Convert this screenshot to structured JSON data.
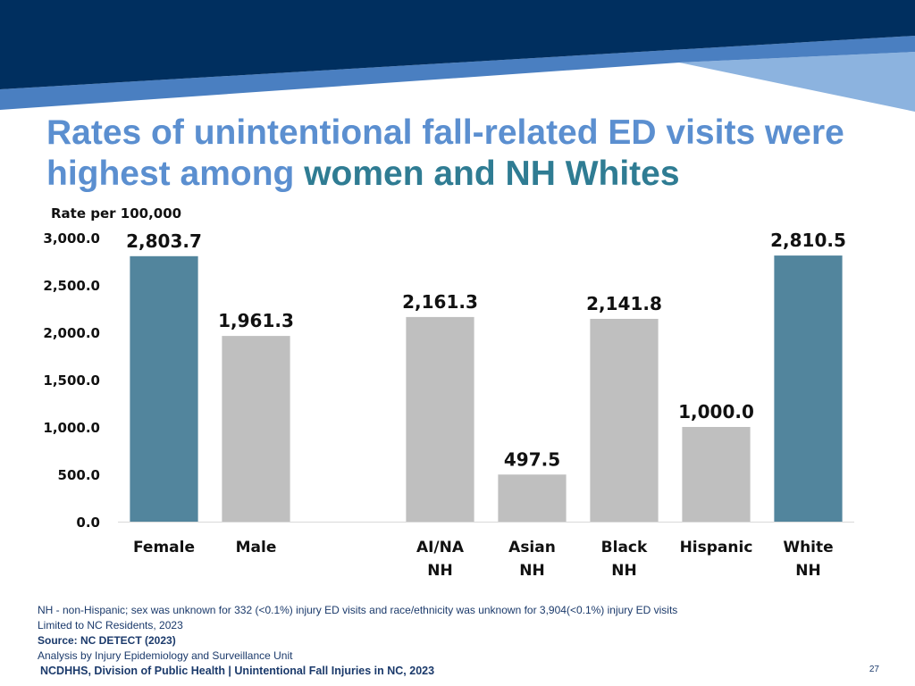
{
  "slide": {
    "title_part1": "Rates of unintentional fall-related ED visits were highest among ",
    "title_highlight": "women and NH Whites",
    "notes": [
      "NH - non-Hispanic; sex was unknown for 332 (<0.1%) injury ED visits and race/ethnicity was unknown for 3,904(<0.1%) injury ED visits",
      "Limited to NC Residents, 2023",
      "Source: NC DETECT (2023)",
      "Analysis by Injury Epidemiology and Surveillance Unit"
    ],
    "footer": "NCDHHS, Division of Public Health | Unintentional Fall Injuries in NC, 2023",
    "page_number": "27"
  },
  "colors": {
    "banner_dark": "#002f5f",
    "banner_mid": "#4a7fc1",
    "banner_light": "#8cb3df",
    "bar_highlight": "#52859d",
    "bar_default": "#bfbfbf",
    "title": "#5b8fd0",
    "title_highlight": "#2f7c93"
  },
  "chart_data": {
    "type": "bar",
    "ylabel": "Rate per 100,000",
    "xlabel": "",
    "ylim": [
      0,
      3000
    ],
    "yticks": [
      "0.0",
      "500.0",
      "1,000.0",
      "1,500.0",
      "2,000.0",
      "2,500.0",
      "3,000.0"
    ],
    "ytick_values": [
      0,
      500,
      1000,
      1500,
      2000,
      2500,
      3000
    ],
    "grid": false,
    "categories": [
      [
        "Female"
      ],
      [
        "Male"
      ],
      [],
      [
        "AI/NA",
        "NH"
      ],
      [
        "Asian",
        "NH"
      ],
      [
        "Black",
        "NH"
      ],
      [
        "Hispanic"
      ],
      [
        "White",
        "NH"
      ]
    ],
    "values": [
      2803.7,
      1961.3,
      null,
      2161.3,
      497.5,
      2141.8,
      1000.0,
      2810.5
    ],
    "value_labels": [
      "2,803.7",
      "1,961.3",
      "",
      "2,161.3",
      "497.5",
      "2,141.8",
      "1,000.0",
      "2,810.5"
    ],
    "highlighted": [
      true,
      false,
      false,
      false,
      false,
      false,
      false,
      true
    ]
  }
}
